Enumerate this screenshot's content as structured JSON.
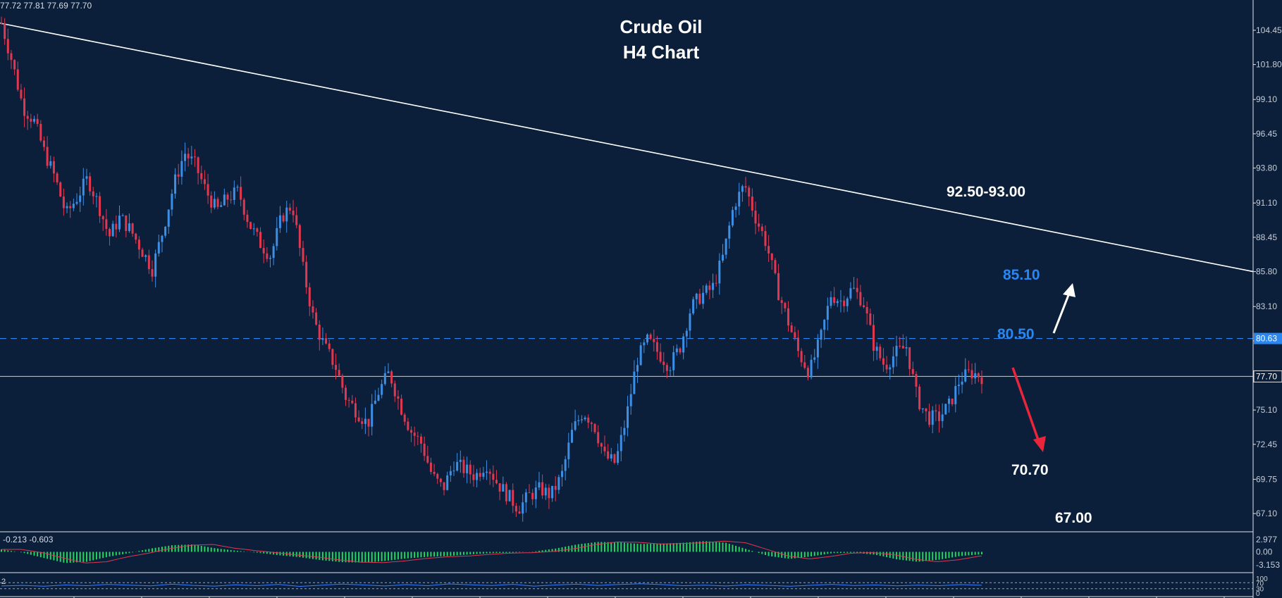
{
  "header": {
    "ohlc_readout": "77.72 77.81 77.69 77.70"
  },
  "colors": {
    "background": "#0b1f3a",
    "bull": "#3d8fe6",
    "bear": "#e0384f",
    "hist": "#27d45f",
    "signal": "#e0384f",
    "rsi": "#3d7fff",
    "trendline": "#ffffff",
    "blue_level": "#2a86f0",
    "arrow_up": "#ffffff",
    "arrow_down": "#e8253b"
  },
  "chart_data": {
    "type": "candlestick",
    "title": "Crude Oil",
    "subtitle": "H4 Chart",
    "y_ticks": [
      "104.45",
      "101.80",
      "99.10",
      "96.45",
      "93.80",
      "91.10",
      "88.45",
      "85.80",
      "83.10",
      "80.45",
      "77.80",
      "75.10",
      "72.45",
      "69.75",
      "67.10"
    ],
    "ylim": [
      65.8,
      105.7
    ],
    "price_path": [
      105.0,
      102.0,
      98.5,
      97.5,
      95.0,
      93.0,
      90.2,
      91.5,
      93.0,
      91.0,
      88.5,
      90.0,
      89.0,
      87.5,
      86.0,
      89.0,
      92.5,
      95.0,
      94.0,
      92.0,
      90.5,
      91.5,
      92.0,
      89.5,
      88.0,
      87.0,
      90.0,
      91.0,
      86.0,
      82.0,
      80.0,
      78.5,
      76.0,
      75.0,
      74.0,
      76.5,
      78.0,
      75.5,
      73.5,
      72.5,
      70.0,
      69.0,
      71.0,
      70.5,
      70.0,
      71.0,
      69.5,
      68.5,
      67.5,
      68.5,
      69.0,
      68.5,
      70.0,
      73.5,
      75.0,
      74.0,
      71.5,
      71.0,
      74.5,
      79.0,
      80.5,
      79.5,
      78.5,
      80.0,
      83.0,
      84.0,
      84.5,
      87.0,
      91.0,
      92.5,
      90.0,
      88.0,
      84.5,
      82.0,
      79.5,
      78.0,
      80.5,
      84.0,
      83.5,
      84.5,
      83.5,
      80.0,
      78.5,
      79.5,
      80.0,
      76.0,
      74.5,
      74.5,
      75.5,
      77.5,
      78.0,
      77.7
    ],
    "current_price": "77.70",
    "horizontal_level": "80.63",
    "trendline": {
      "start": 105.0,
      "end": 85.8
    },
    "annotations": [
      {
        "label": "92.50-93.00",
        "color": "white"
      },
      {
        "label": "85.10",
        "color": "blue"
      },
      {
        "label": "80.50",
        "color": "blue"
      },
      {
        "label": "70.70",
        "color": "white"
      },
      {
        "label": "67.00",
        "color": "white"
      }
    ],
    "macd": {
      "readout": "-0.213 -0.603",
      "ticks": [
        "2.977",
        "0.00",
        "-3.153"
      ],
      "range": [
        -3.153,
        2.977
      ],
      "path": [
        0.6,
        -0.2,
        -1.5,
        -2.7,
        -2.4,
        -1.2,
        -0.3,
        0.8,
        1.6,
        1.8,
        0.9,
        0.3,
        -0.2,
        -0.8,
        -1.3,
        -2.0,
        -2.5,
        -2.6,
        -2.2,
        -1.6,
        -1.2,
        -1.0,
        -0.6,
        -0.3,
        -0.2,
        0.1,
        0.8,
        1.8,
        2.4,
        2.3,
        1.9,
        2.0,
        2.2,
        2.6,
        2.2,
        0.6,
        -1.0,
        -1.7,
        -1.1,
        -0.3,
        -0.2,
        -0.7,
        -1.8,
        -2.4,
        -1.9,
        -1.0,
        -0.6
      ]
    },
    "rsi": {
      "readout": "2",
      "ticks": [
        "100",
        "70",
        "30",
        "0"
      ],
      "path": [
        48,
        52,
        46,
        55,
        50,
        58,
        54,
        49,
        60,
        52,
        47,
        56,
        50,
        58,
        45,
        53,
        61,
        55,
        48,
        57,
        50,
        62,
        56,
        51,
        59,
        47,
        55,
        60,
        52,
        58,
        63,
        57,
        50,
        54,
        48,
        56,
        52,
        46,
        53,
        58,
        51,
        55,
        49,
        54,
        50,
        57,
        53
      ]
    }
  }
}
